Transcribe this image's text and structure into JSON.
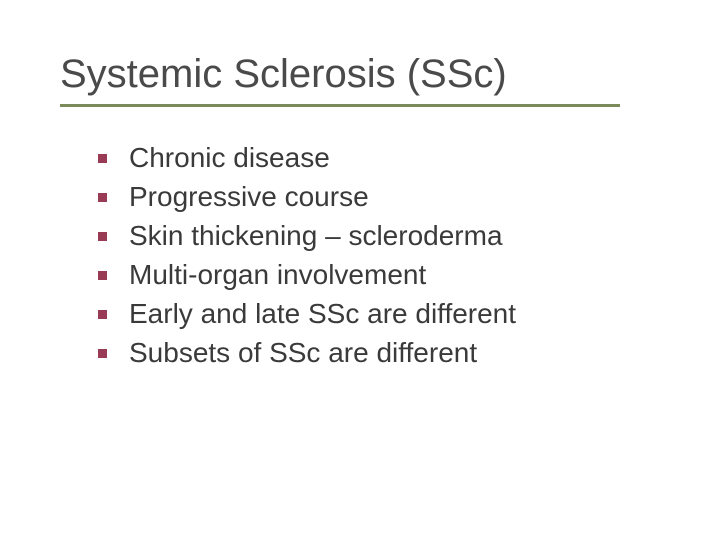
{
  "slide": {
    "title": "Systemic Sclerosis (SSc)",
    "title_color": "#4a4a4a",
    "title_fontsize": 40,
    "underline_color": "#7a8a5a",
    "bullet_color": "#9a3b55",
    "body_color": "#3a3a3a",
    "body_fontsize": 28,
    "background_color": "#ffffff",
    "items": [
      "Chronic disease",
      "Progressive course",
      "Skin thickening – scleroderma",
      "Multi-organ involvement",
      "Early and late SSc are different",
      "Subsets of SSc are different"
    ]
  }
}
